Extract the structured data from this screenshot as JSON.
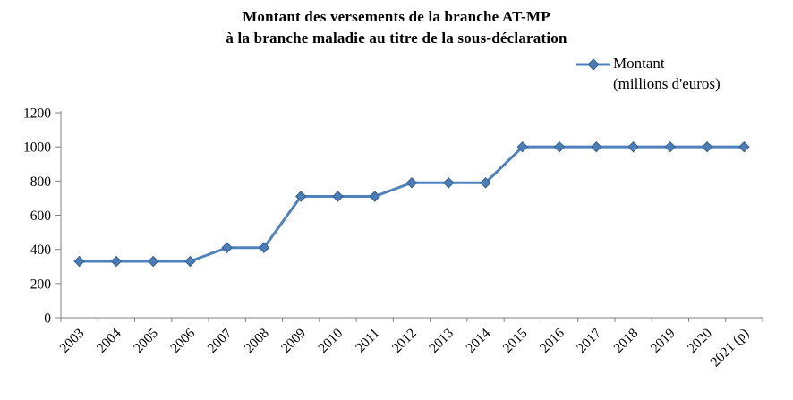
{
  "header": {
    "title_line1": "Montant des versements de la branche AT-MP",
    "title_line2": "à la branche maladie au titre de la sous-déclaration"
  },
  "legend": {
    "series_label": "Montant",
    "units_label": "(millions d'euros)"
  },
  "chart_data": {
    "type": "line",
    "title": "Montant des versements de la branche AT-MP à la branche maladie au titre de la sous-déclaration",
    "categories": [
      "2003",
      "2004",
      "2005",
      "2006",
      "2007",
      "2008",
      "2009",
      "2010",
      "2011",
      "2012",
      "2013",
      "2014",
      "2015",
      "2016",
      "2017",
      "2018",
      "2019",
      "2020",
      "2021 (p)"
    ],
    "series": [
      {
        "name": "Montant (millions d'euros)",
        "values": [
          330,
          330,
          330,
          330,
          410,
          410,
          710,
          710,
          710,
          790,
          790,
          790,
          1000,
          1000,
          1000,
          1000,
          1000,
          1000,
          1000
        ]
      }
    ],
    "xlabel": "",
    "ylabel": "",
    "ylim": [
      0,
      1200
    ],
    "ytick_step": 200,
    "yticks": [
      0,
      200,
      400,
      600,
      800,
      1000,
      1200
    ],
    "grid": false,
    "legend_position": "top-right",
    "marker": "diamond",
    "line_color": "#4F81BD",
    "marker_fill": "#4A7EBB",
    "marker_border": "#385D8A",
    "axis_color": "#808080",
    "text_color": "#000000"
  }
}
